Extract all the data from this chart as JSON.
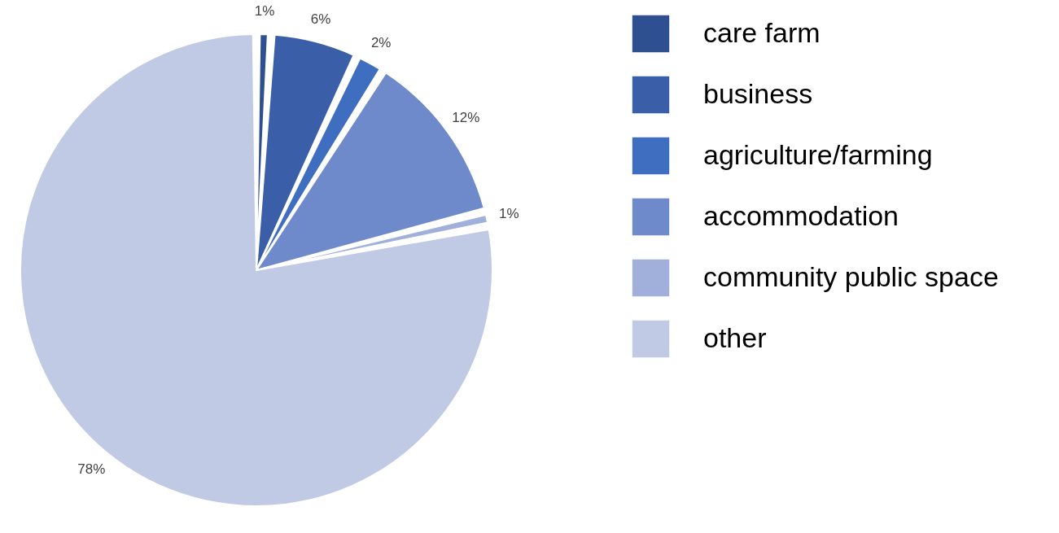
{
  "chart_data": {
    "type": "pie",
    "categories": [
      "care farm",
      "business",
      "agriculture/farming",
      "accommodation",
      "community public space",
      "other"
    ],
    "values": [
      1,
      6,
      2,
      12,
      1,
      78
    ],
    "value_labels": [
      "1%",
      "6%",
      "2%",
      "12%",
      "1%",
      "78%"
    ],
    "colors": [
      "#2f5090",
      "#3a5fa8",
      "#3f6ec0",
      "#6f8acb",
      "#a0b0da",
      "#c0cae5"
    ],
    "legend": "right"
  }
}
